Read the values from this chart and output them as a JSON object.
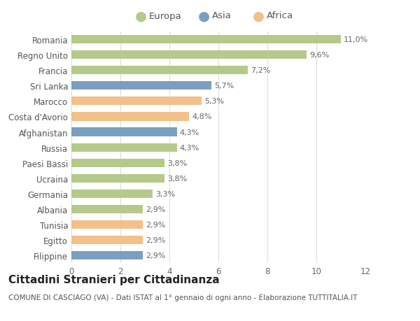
{
  "categories": [
    "Filippine",
    "Egitto",
    "Tunisia",
    "Albania",
    "Germania",
    "Ucraina",
    "Paesi Bassi",
    "Russia",
    "Afghanistan",
    "Costa d'Avorio",
    "Marocco",
    "Sri Lanka",
    "Francia",
    "Regno Unito",
    "Romania"
  ],
  "values": [
    2.9,
    2.9,
    2.9,
    2.9,
    3.3,
    3.8,
    3.8,
    4.3,
    4.3,
    4.8,
    5.3,
    5.7,
    7.2,
    9.6,
    11.0
  ],
  "labels": [
    "2,9%",
    "2,9%",
    "2,9%",
    "2,9%",
    "3,3%",
    "3,8%",
    "3,8%",
    "4,3%",
    "4,3%",
    "4,8%",
    "5,3%",
    "5,7%",
    "7,2%",
    "9,6%",
    "11,0%"
  ],
  "continents": [
    "Asia",
    "Africa",
    "Africa",
    "Europa",
    "Europa",
    "Europa",
    "Europa",
    "Europa",
    "Asia",
    "Africa",
    "Africa",
    "Asia",
    "Europa",
    "Europa",
    "Europa"
  ],
  "colors": {
    "Europa": "#b5c98a",
    "Asia": "#7b9fc0",
    "Africa": "#f2c088"
  },
  "legend_labels": [
    "Europa",
    "Asia",
    "Africa"
  ],
  "xlim": [
    0,
    12
  ],
  "xticks": [
    0,
    2,
    4,
    6,
    8,
    10,
    12
  ],
  "title": "Cittadini Stranieri per Cittadinanza",
  "subtitle": "COMUNE DI CASCIAGO (VA) - Dati ISTAT al 1° gennaio di ogni anno - Elaborazione TUTTITALIA.IT",
  "background_color": "#ffffff",
  "bar_height": 0.55,
  "title_fontsize": 11,
  "subtitle_fontsize": 7.5,
  "label_fontsize": 8,
  "tick_fontsize": 8.5,
  "legend_fontsize": 9.5
}
